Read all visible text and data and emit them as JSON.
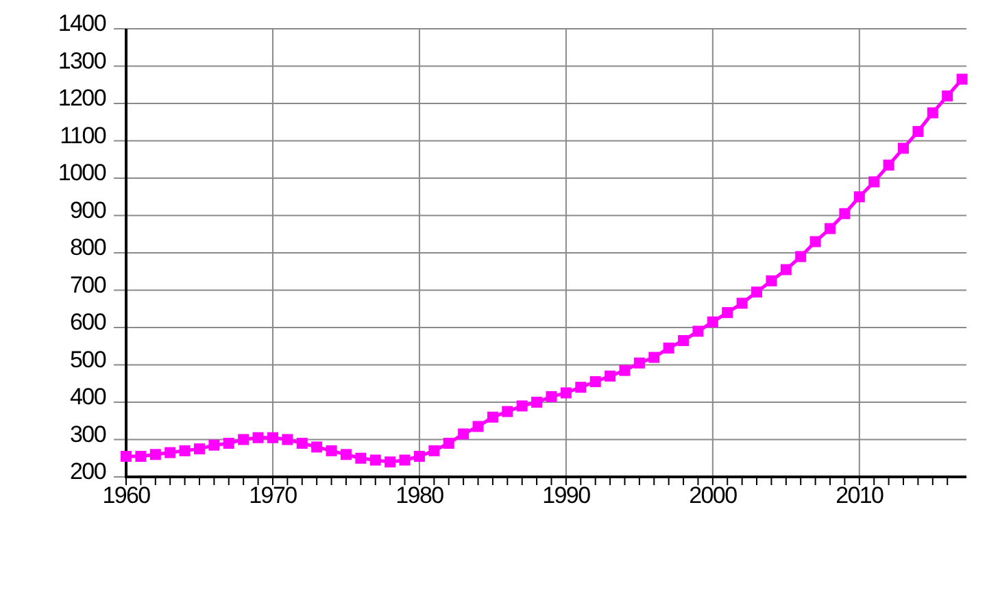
{
  "chart_data": {
    "type": "line",
    "x": [
      1960,
      1961,
      1962,
      1963,
      1964,
      1965,
      1966,
      1967,
      1968,
      1969,
      1970,
      1971,
      1972,
      1973,
      1974,
      1975,
      1976,
      1977,
      1978,
      1979,
      1980,
      1981,
      1982,
      1983,
      1984,
      1985,
      1986,
      1987,
      1988,
      1989,
      1990,
      1991,
      1992,
      1993,
      1994,
      1995,
      1996,
      1997,
      1998,
      1999,
      2000,
      2001,
      2002,
      2003,
      2004,
      2005,
      2006,
      2007,
      2008,
      2009,
      2010,
      2011,
      2012,
      2013,
      2014,
      2015,
      2016,
      2017
    ],
    "series": [
      {
        "color": "#ff00ff",
        "values": [
          255,
          255,
          260,
          265,
          270,
          275,
          285,
          290,
          300,
          305,
          305,
          300,
          290,
          280,
          270,
          260,
          250,
          245,
          240,
          245,
          255,
          270,
          290,
          315,
          335,
          360,
          375,
          390,
          400,
          415,
          425,
          440,
          455,
          470,
          485,
          505,
          520,
          545,
          565,
          590,
          615,
          640,
          665,
          695,
          725,
          755,
          790,
          830,
          865,
          905,
          950,
          990,
          1035,
          1080,
          1125,
          1175,
          1220,
          1265
        ]
      }
    ],
    "xlim": [
      1960,
      2017.3
    ],
    "xticks": [
      1960,
      {
        "value": 1961,
        "label": null
      },
      {
        "value": 1962,
        "label": null
      },
      {
        "value": 1963,
        "label": null
      },
      {
        "value": 1964,
        "label": null
      },
      {
        "value": 1965,
        "label": null
      },
      {
        "value": 1966,
        "label": null
      },
      {
        "value": 1967,
        "label": null
      },
      {
        "value": 1968,
        "label": null
      },
      {
        "value": 1969,
        "label": null
      },
      1970,
      {
        "value": 1971,
        "label": null
      },
      {
        "value": 1972,
        "label": null
      },
      {
        "value": 1973,
        "label": null
      },
      {
        "value": 1974,
        "label": null
      },
      {
        "value": 1975,
        "label": null
      },
      {
        "value": 1976,
        "label": null
      },
      {
        "value": 1977,
        "label": null
      },
      {
        "value": 1978,
        "label": null
      },
      {
        "value": 1979,
        "label": null
      },
      1980,
      {
        "value": 1981,
        "label": null
      },
      {
        "value": 1982,
        "label": null
      },
      {
        "value": 1983,
        "label": null
      },
      {
        "value": 1984,
        "label": null
      },
      {
        "value": 1985,
        "label": null
      },
      {
        "value": 1986,
        "label": null
      },
      {
        "value": 1987,
        "label": null
      },
      {
        "value": 1988,
        "label": null
      },
      {
        "value": 1989,
        "label": null
      },
      1990,
      {
        "value": 1991,
        "label": null
      },
      {
        "value": 1992,
        "label": null
      },
      {
        "value": 1993,
        "label": null
      },
      {
        "value": 1994,
        "label": null
      },
      {
        "value": 1995,
        "label": null
      },
      {
        "value": 1996,
        "label": null
      },
      {
        "value": 1997,
        "label": null
      },
      {
        "value": 1998,
        "label": null
      },
      {
        "value": 1999,
        "label": null
      },
      2000,
      {
        "value": 2001,
        "label": null
      },
      {
        "value": 2002,
        "label": null
      },
      {
        "value": 2003,
        "label": null
      },
      {
        "value": 2004,
        "label": null
      },
      {
        "value": 2005,
        "label": null
      },
      {
        "value": 2006,
        "label": null
      },
      {
        "value": 2007,
        "label": null
      },
      {
        "value": 2008,
        "label": null
      },
      {
        "value": 2009,
        "label": null
      },
      2010,
      {
        "value": 2011,
        "label": null
      },
      {
        "value": 2012,
        "label": null
      },
      {
        "value": 2013,
        "label": null
      },
      {
        "value": 2014,
        "label": null
      },
      {
        "value": 2015,
        "label": null
      },
      {
        "value": 2016,
        "label": null
      }
    ],
    "ylim": [
      200,
      1400
    ],
    "yticks": [
      200,
      300,
      400,
      500,
      600,
      700,
      800,
      900,
      1000,
      1100,
      1200,
      1300,
      1400
    ],
    "grid": true,
    "marker": "square",
    "line_style": "solid"
  }
}
